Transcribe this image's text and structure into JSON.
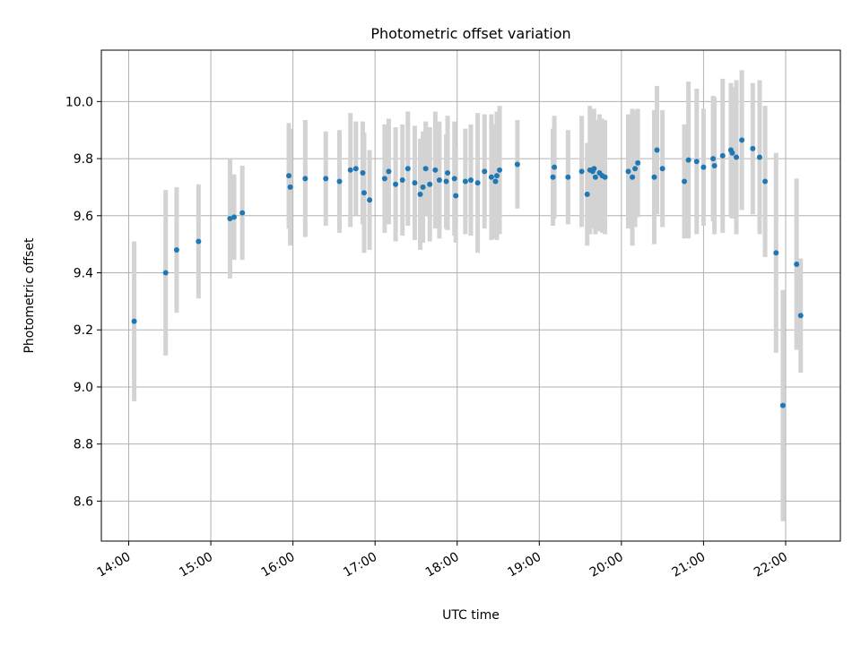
{
  "chart_data": {
    "type": "scatter",
    "title": "Photometric offset variation",
    "xlabel": "UTC time",
    "ylabel": "Photometric offset",
    "xlim": [
      "13:40",
      "22:40"
    ],
    "ylim": [
      8.46,
      10.18
    ],
    "x_ticks": [
      "14:00",
      "15:00",
      "16:00",
      "17:00",
      "18:00",
      "19:00",
      "20:00",
      "21:00",
      "22:00"
    ],
    "y_ticks": [
      "8.6",
      "8.8",
      "9.0",
      "9.2",
      "9.4",
      "9.6",
      "9.8",
      "10.0"
    ],
    "grid": true,
    "colors": {
      "points": "#1f77b4",
      "errorbars": "#d3d3d3",
      "grid": "#b0b0b0"
    },
    "series": [
      {
        "x": [
          "14:04",
          "14:27",
          "14:35",
          "14:51",
          "15:14",
          "15:17",
          "15:23",
          "15:57",
          "15:58",
          "16:09",
          "16:24",
          "16:34",
          "16:42",
          "16:46",
          "16:51",
          "16:52",
          "16:56",
          "17:07",
          "17:10",
          "17:15",
          "17:20",
          "17:24",
          "17:29",
          "17:33",
          "17:35",
          "17:37",
          "17:40",
          "17:44",
          "17:47",
          "17:52",
          "17:53",
          "17:58",
          "17:59",
          "18:06",
          "18:10",
          "18:15",
          "18:20",
          "18:25",
          "18:28",
          "18:29",
          "18:31",
          "18:44",
          "19:10",
          "19:11",
          "19:21",
          "19:31",
          "19:35",
          "19:37",
          "19:39",
          "19:40",
          "19:41",
          "19:44",
          "19:46",
          "19:48",
          "20:05",
          "20:08",
          "20:10",
          "20:12",
          "20:24",
          "20:26",
          "20:30",
          "20:46",
          "20:49",
          "20:55",
          "21:00",
          "21:07",
          "21:08",
          "21:14",
          "21:20",
          "21:21",
          "21:24",
          "21:28",
          "21:36",
          "21:41",
          "21:45",
          "21:53",
          "21:58",
          "22:08",
          "22:11"
        ],
        "y": [
          9.23,
          9.4,
          9.48,
          9.51,
          9.59,
          9.595,
          9.61,
          9.74,
          9.7,
          9.73,
          9.73,
          9.72,
          9.76,
          9.765,
          9.75,
          9.68,
          9.655,
          9.73,
          9.755,
          9.71,
          9.725,
          9.765,
          9.715,
          9.675,
          9.7,
          9.765,
          9.71,
          9.76,
          9.725,
          9.72,
          9.75,
          9.73,
          9.67,
          9.72,
          9.725,
          9.715,
          9.755,
          9.735,
          9.72,
          9.74,
          9.76,
          9.78,
          9.735,
          9.77,
          9.735,
          9.755,
          9.675,
          9.76,
          9.755,
          9.765,
          9.735,
          9.75,
          9.74,
          9.735,
          9.755,
          9.735,
          9.765,
          9.785,
          9.735,
          9.83,
          9.765,
          9.72,
          9.795,
          9.79,
          9.77,
          9.8,
          9.775,
          9.81,
          9.83,
          9.82,
          9.805,
          9.865,
          9.835,
          9.805,
          9.72,
          9.47,
          8.935,
          9.43,
          9.25
        ],
        "yerr": [
          0.28,
          0.29,
          0.22,
          0.2,
          0.21,
          0.15,
          0.165,
          0.185,
          0.205,
          0.205,
          0.165,
          0.18,
          0.2,
          0.165,
          0.18,
          0.21,
          0.175,
          0.19,
          0.185,
          0.2,
          0.195,
          0.2,
          0.2,
          0.195,
          0.195,
          0.165,
          0.2,
          0.205,
          0.205,
          0.165,
          0.2,
          0.2,
          0.165,
          0.185,
          0.195,
          0.245,
          0.2,
          0.22,
          0.2,
          0.225,
          0.225,
          0.155,
          0.17,
          0.18,
          0.165,
          0.195,
          0.18,
          0.225,
          0.2,
          0.21,
          0.2,
          0.205,
          0.2,
          0.2,
          0.2,
          0.24,
          0.205,
          0.19,
          0.235,
          0.225,
          0.205,
          0.2,
          0.275,
          0.255,
          0.205,
          0.22,
          0.24,
          0.27,
          0.235,
          0.23,
          0.27,
          0.245,
          0.23,
          0.27,
          0.265,
          0.35,
          0.405,
          0.3,
          0.2
        ]
      }
    ]
  }
}
